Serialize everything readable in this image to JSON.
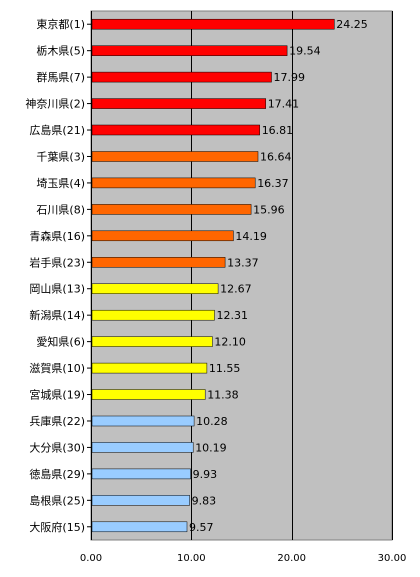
{
  "chart_data": {
    "type": "bar",
    "orientation": "horizontal",
    "categories": [
      "東京都(1)",
      "栃木県(5)",
      "群馬県(7)",
      "神奈川県(2)",
      "広島県(21)",
      "千葉県(3)",
      "埼玉県(4)",
      "石川県(8)",
      "青森県(16)",
      "岩手県(23)",
      "岡山県(13)",
      "新潟県(14)",
      "愛知県(6)",
      "滋賀県(10)",
      "宮城県(19)",
      "兵庫県(22)",
      "大分県(30)",
      "徳島県(29)",
      "島根県(25)",
      "大阪府(15)"
    ],
    "values": [
      24.25,
      19.54,
      17.99,
      17.41,
      16.81,
      16.64,
      16.37,
      15.96,
      14.19,
      13.37,
      12.67,
      12.31,
      12.1,
      11.55,
      11.38,
      10.28,
      10.19,
      9.93,
      9.83,
      9.57
    ],
    "value_labels": [
      "24.25",
      "19.54",
      "17.99",
      "17.41",
      "16.81",
      "16.64",
      "16.37",
      "15.96",
      "14.19",
      "13.37",
      "12.67",
      "12.31",
      "12.10",
      "11.55",
      "11.38",
      "10.28",
      "10.19",
      "9.93",
      "9.83",
      "9.57"
    ],
    "bar_colors": [
      "#ff0000",
      "#ff0000",
      "#ff0000",
      "#ff0000",
      "#ff0000",
      "#ff6600",
      "#ff6600",
      "#ff6600",
      "#ff6600",
      "#ff6600",
      "#ffff00",
      "#ffff00",
      "#ffff00",
      "#ffff00",
      "#ffff00",
      "#99ccff",
      "#99ccff",
      "#99ccff",
      "#99ccff",
      "#99ccff"
    ],
    "xlim": [
      0,
      30
    ],
    "xticks": [
      0,
      10,
      20,
      30
    ],
    "xtick_labels": [
      "0.00",
      "10.00",
      "20.00",
      "30.00"
    ],
    "grid": true,
    "plot_background": "#c0c0c0",
    "gridline_color": "#000000",
    "title": "",
    "xlabel": "",
    "ylabel": ""
  }
}
